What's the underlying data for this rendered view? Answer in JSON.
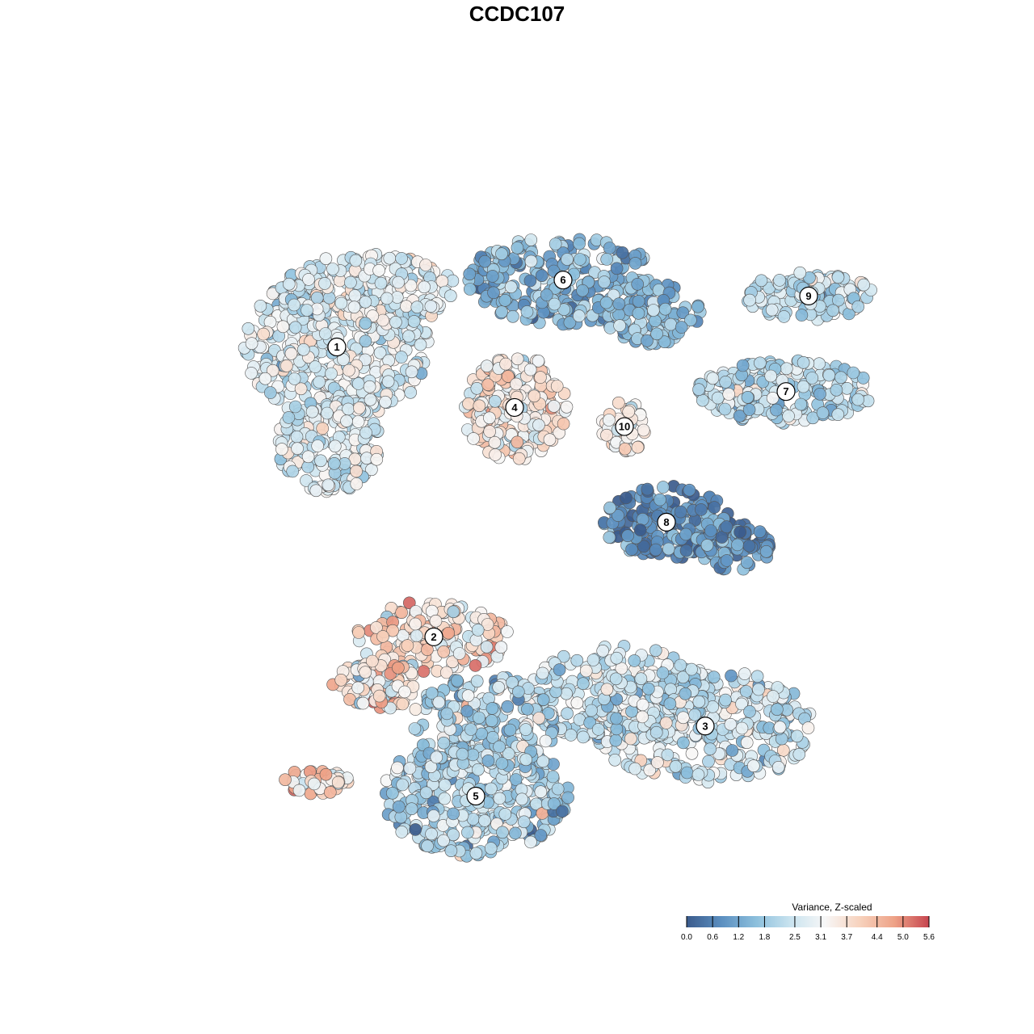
{
  "chart_data": {
    "type": "scatter",
    "title": "CCDC107",
    "xlabel": "",
    "ylabel": "",
    "grid": false,
    "axes_visible": false,
    "color_scale": {
      "title": "Variance, Z-scaled",
      "min": 0.0,
      "max": 5.6,
      "ticks": [
        0.0,
        0.6,
        1.2,
        1.8,
        2.5,
        3.1,
        3.7,
        4.4,
        5.0,
        5.6
      ],
      "tick_labels": [
        "0.0",
        "0.6",
        "1.2",
        "1.8",
        "2.5",
        "3.1",
        "3.7",
        "4.4",
        "5.0",
        "5.6"
      ],
      "colors": [
        "#3b5b8c",
        "#5b8fc0",
        "#8cbfdc",
        "#c9e3ef",
        "#f7f7f7",
        "#f7d2bd",
        "#eea287",
        "#c6454f"
      ],
      "legend_position": "bottom-right"
    },
    "clusters": [
      {
        "label": "1",
        "x": -0.62,
        "y": 0.53,
        "mean": 2.7,
        "spread": 0.55
      },
      {
        "label": "2",
        "x": -0.32,
        "y": -0.38,
        "mean": 3.6,
        "spread": 0.8
      },
      {
        "label": "3",
        "x": 0.52,
        "y": -0.66,
        "mean": 2.4,
        "spread": 0.6
      },
      {
        "label": "4",
        "x": -0.07,
        "y": 0.34,
        "mean": 3.5,
        "spread": 0.7
      },
      {
        "label": "5",
        "x": -0.19,
        "y": -0.88,
        "mean": 2.1,
        "spread": 0.7
      },
      {
        "label": "6",
        "x": 0.08,
        "y": 0.74,
        "mean": 1.5,
        "spread": 0.6
      },
      {
        "label": "7",
        "x": 0.77,
        "y": 0.39,
        "mean": 2.1,
        "spread": 0.55
      },
      {
        "label": "8",
        "x": 0.4,
        "y": -0.02,
        "mean": 0.8,
        "spread": 0.6
      },
      {
        "label": "9",
        "x": 0.84,
        "y": 0.69,
        "mean": 2.3,
        "spread": 0.6
      },
      {
        "label": "10",
        "x": 0.27,
        "y": 0.28,
        "mean": 3.4,
        "spread": 0.5
      }
    ],
    "xlim": [
      -1.15,
      1.15
    ],
    "ylim": [
      -1.15,
      1.15
    ]
  }
}
